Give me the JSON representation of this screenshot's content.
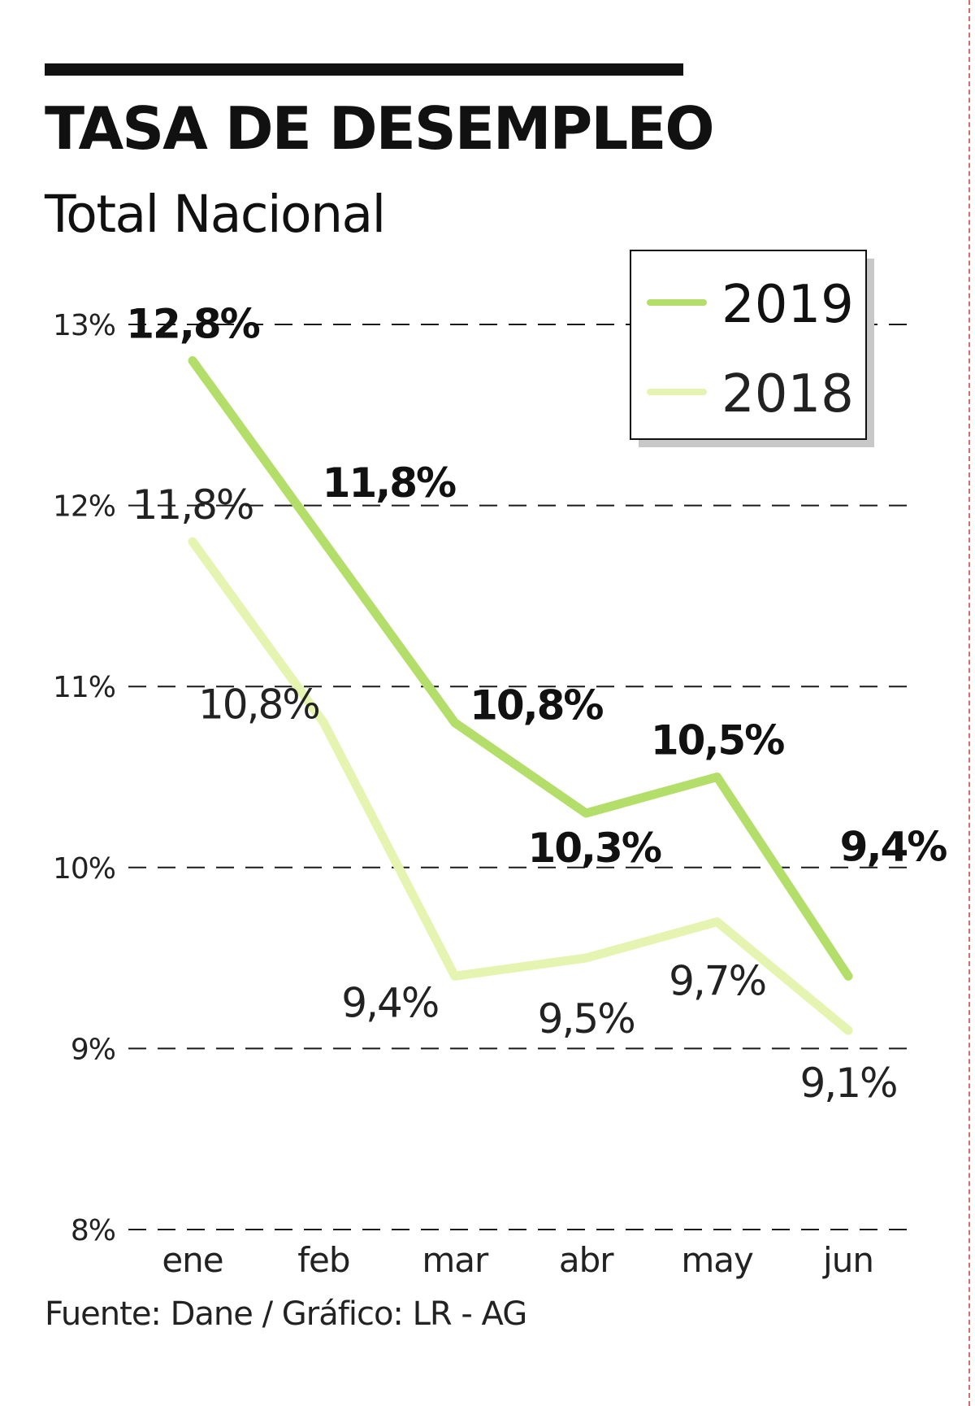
{
  "title": "TASA DE DESEMPLEO",
  "subtitle": "Total Nacional",
  "source": "Fuente: Dane / Gráfico: LR - AG",
  "colors": {
    "series_2019": "#b3de69",
    "series_2018": "#e5f4b0",
    "grid": "#1a1a1a",
    "text": "#111111"
  },
  "chart_data": {
    "type": "line",
    "title": "TASA DE DESEMPLEO",
    "subtitle": "Total Nacional",
    "xlabel": "",
    "ylabel": "",
    "categories": [
      "ene",
      "feb",
      "mar",
      "abr",
      "may",
      "jun"
    ],
    "ylim": [
      8,
      13
    ],
    "yticks": [
      8,
      9,
      10,
      11,
      12,
      13
    ],
    "ytick_labels": [
      "8%",
      "9%",
      "10%",
      "11%",
      "12%",
      "13%"
    ],
    "grid": true,
    "legend": "top-right",
    "series": [
      {
        "name": "2019",
        "values": [
          12.8,
          11.8,
          10.8,
          10.3,
          10.5,
          9.4
        ],
        "labels": [
          "12,8%",
          "11,8%",
          "10,8%",
          "10,3%",
          "10,5%",
          "9,4%"
        ]
      },
      {
        "name": "2018",
        "values": [
          11.8,
          10.8,
          9.4,
          9.5,
          9.7,
          9.1
        ],
        "labels": [
          "11,8%",
          "10,8%",
          "9,4%",
          "9,5%",
          "9,7%",
          "9,1%"
        ]
      }
    ]
  }
}
